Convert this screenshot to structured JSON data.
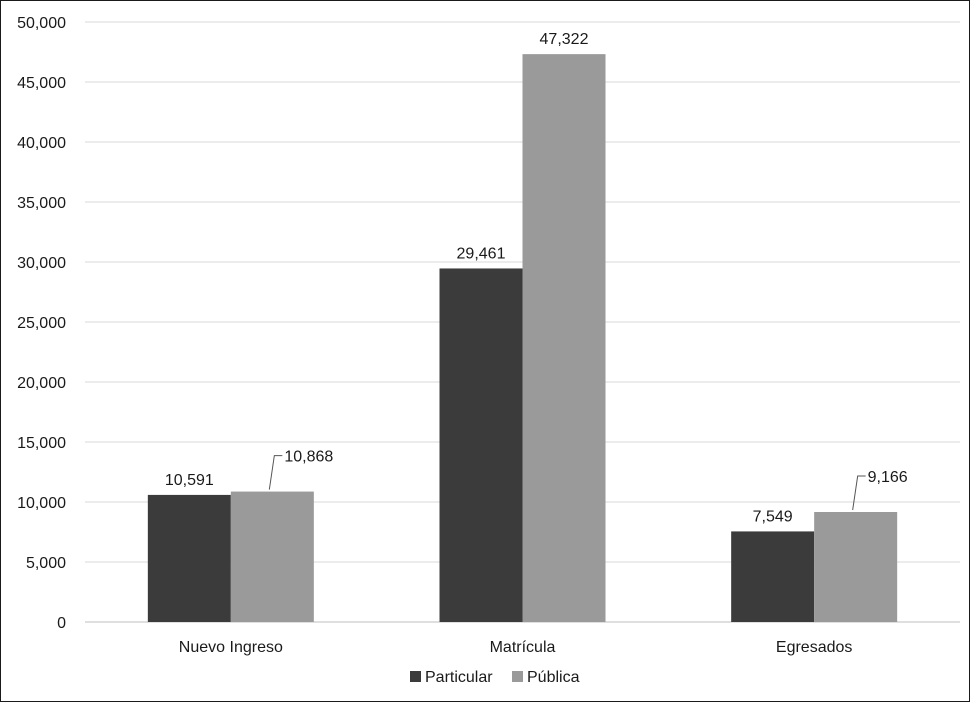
{
  "chart_data": {
    "type": "bar",
    "categories": [
      "Nuevo Ingreso",
      "Matrícula",
      "Egresados"
    ],
    "series": [
      {
        "name": "Particular",
        "color": "#3b3b3b",
        "values": [
          10591,
          29461,
          7549
        ],
        "labels": [
          "10,591",
          "29,461",
          "7,549"
        ]
      },
      {
        "name": "Pública",
        "color": "#9a9a9a",
        "values": [
          10868,
          47322,
          9166
        ],
        "labels": [
          "10,868",
          "47,322",
          "9,166"
        ]
      }
    ],
    "ylim": [
      0,
      50000
    ],
    "yticks": [
      0,
      5000,
      10000,
      15000,
      20000,
      25000,
      30000,
      35000,
      40000,
      45000,
      50000
    ],
    "ytick_labels": [
      "0",
      "5,000",
      "10,000",
      "15,000",
      "20,000",
      "25,000",
      "30,000",
      "35,000",
      "40,000",
      "45,000",
      "50,000"
    ],
    "title": "",
    "xlabel": "",
    "ylabel": "",
    "grid": true,
    "gridline_color": "#d9d9d9",
    "legend_position": "bottom"
  }
}
